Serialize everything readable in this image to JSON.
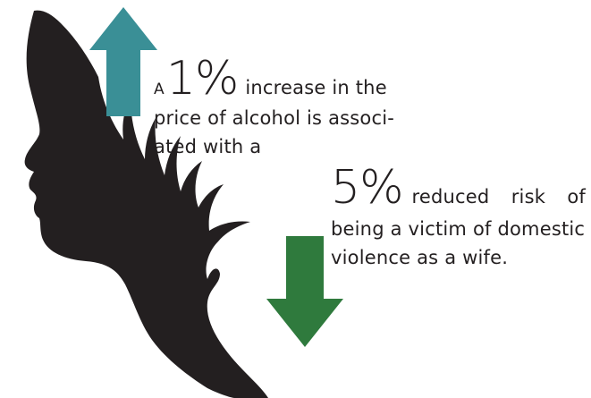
{
  "colors": {
    "silhouette": "#231f20",
    "arrow_up": "#3a8f96",
    "arrow_down": "#2f7a3d",
    "text": "#231f20"
  },
  "icons": {
    "silhouette": "woman-profile-silhouette",
    "up": "arrow-up-icon",
    "down": "arrow-down-icon"
  },
  "statement1": {
    "prefix": "A",
    "number": "1%",
    "line1_rest": "increase in the",
    "line2": "price of alcohol is associ-",
    "line3": "ated with a"
  },
  "statement2": {
    "number": "5%",
    "word1": "reduced",
    "word2": "risk",
    "word3": "of",
    "line2": "being a victim of domestic",
    "line3": "violence as a wife."
  }
}
